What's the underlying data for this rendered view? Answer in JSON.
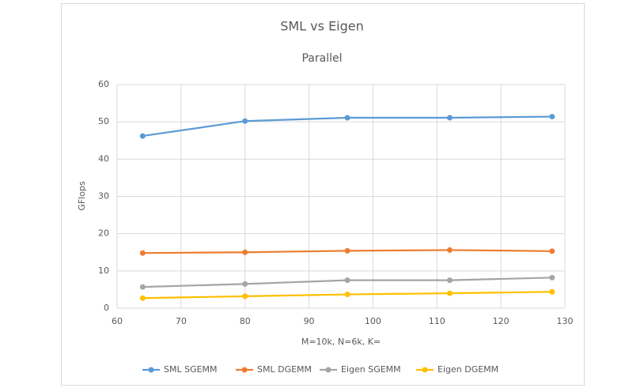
{
  "chart_data": {
    "type": "line",
    "title": "SML vs Eigen",
    "subtitle": "Parallel",
    "x_label": "M=10k, N=6k, K=",
    "y_label": "GFlops",
    "x": [
      64,
      80,
      96,
      112,
      128
    ],
    "series": [
      {
        "name": "SML SGEMM",
        "color": "#5b9bd5",
        "values": [
          46.2,
          50.2,
          51.1,
          51.1,
          51.4
        ]
      },
      {
        "name": "SML DGEMM",
        "color": "#ed7d31",
        "values": [
          14.8,
          15.0,
          15.4,
          15.6,
          15.3
        ]
      },
      {
        "name": "Eigen SGEMM",
        "color": "#a5a5a5",
        "values": [
          5.7,
          6.5,
          7.5,
          7.5,
          8.2
        ]
      },
      {
        "name": "Eigen DGEMM",
        "color": "#ffc000",
        "values": [
          2.7,
          3.2,
          3.7,
          4.0,
          4.4
        ]
      }
    ],
    "xlim": [
      60,
      130
    ],
    "xticks": [
      60,
      70,
      80,
      90,
      100,
      110,
      120,
      130
    ],
    "ylim": [
      0,
      60
    ],
    "yticks": [
      0,
      10,
      20,
      30,
      40,
      50,
      60
    ],
    "grid": true,
    "legend": "bottom"
  }
}
